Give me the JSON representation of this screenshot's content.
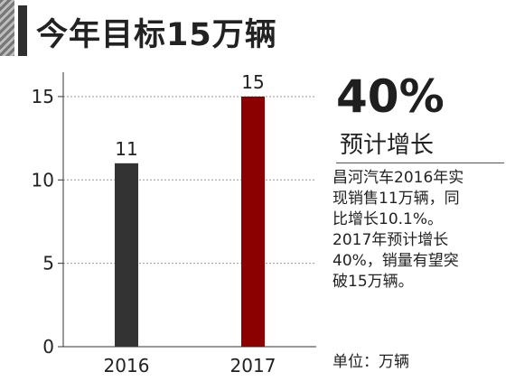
{
  "title": "今年目标15万辆",
  "highlight": {
    "value": "40%",
    "caption": "预计增长"
  },
  "description": "昌河汽车2016年实\n现销售11万辆，同\n比增长10.1%。\n2017年预计增长\n40%，销量有望突\n破15万辆。",
  "unit_note": "单位：万辆",
  "colors": {
    "bar_2016": "#333333",
    "bar_2017": "#8b0000"
  },
  "chart_data": {
    "type": "bar",
    "categories": [
      "2016",
      "2017"
    ],
    "values": [
      11,
      15
    ],
    "data_labels": [
      "11",
      "15"
    ],
    "yticks": [
      "0",
      "5",
      "10",
      "15"
    ],
    "ylim": [
      0,
      17
    ],
    "grid": true
  }
}
